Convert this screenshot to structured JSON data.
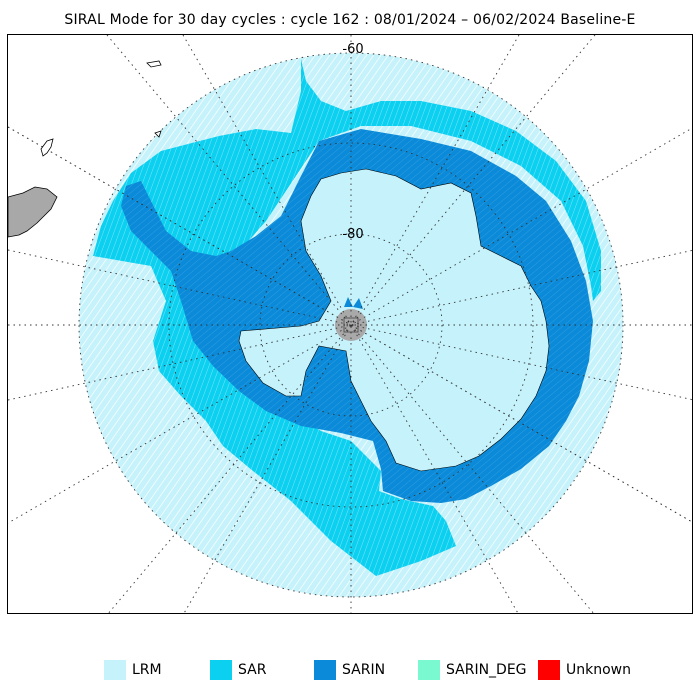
{
  "title": "SIRAL Mode for 30 day cycles : cycle 162 : 08/01/2024 – 06/02/2024 Baseline-E",
  "map": {
    "latitude_labels": [
      "-60",
      "-80"
    ],
    "colors": {
      "LRM": "#c5f2fb",
      "SAR": "#0cd0f0",
      "SARIN": "#0a8ad8",
      "SARIN_DEG": "#7af8d0",
      "Unknown": "#ff0000",
      "land_outside": "#a8a8a8",
      "pole_hole": "#a9a9a9"
    }
  },
  "legend": [
    {
      "label": "LRM",
      "color": "#c5f2fb"
    },
    {
      "label": "SAR",
      "color": "#0cd0f0"
    },
    {
      "label": "SARIN",
      "color": "#0a8ad8"
    },
    {
      "label": "SARIN_DEG",
      "color": "#7af8d0"
    },
    {
      "label": "Unknown",
      "color": "#ff0000"
    }
  ]
}
